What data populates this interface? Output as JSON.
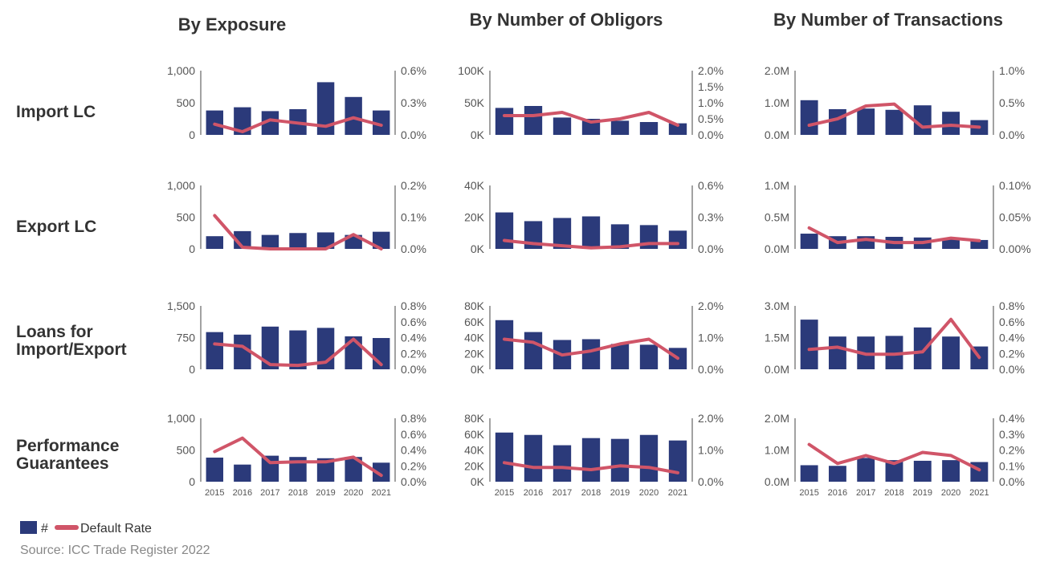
{
  "titles": {
    "col_exposure": "By Exposure",
    "col_obligors": "By Number of Obligors",
    "col_transactions": "By Number of Transactions"
  },
  "row_labels": {
    "import_lc": "Import LC",
    "export_lc": "Export LC",
    "loans_line1": "Loans for",
    "loans_line2": "Import/Export",
    "perf_line1": "Performance",
    "perf_line2": "Guarantees"
  },
  "legend": {
    "bar_label": "#",
    "line_label": "Default Rate"
  },
  "source": "Source: ICC Trade Register 2022",
  "colors": {
    "bar": "#2b3a7a",
    "line": "#d05568",
    "axis": "#444444",
    "text": "#333333",
    "tick": "#555555"
  },
  "chart_data": [
    {
      "type": "bar+line",
      "row": "Import LC",
      "column": "By Exposure",
      "categories": [
        "2015",
        "2016",
        "2017",
        "2018",
        "2019",
        "2020",
        "2021"
      ],
      "bar_values": [
        380,
        430,
        370,
        400,
        820,
        590,
        380
      ],
      "line_values": [
        0.1,
        0.03,
        0.14,
        0.11,
        0.08,
        0.16,
        0.09
      ],
      "y_left": {
        "max": 1000,
        "ticks": [
          0,
          500,
          1000
        ],
        "labels": [
          "0",
          "500",
          "1,000"
        ]
      },
      "y_right": {
        "max": 0.6,
        "ticks": [
          0,
          0.3,
          0.6
        ],
        "labels": [
          "0.0%",
          "0.3%",
          "0.6%"
        ]
      },
      "show_x_labels": false
    },
    {
      "type": "bar+line",
      "row": "Import LC",
      "column": "By Number of Obligors",
      "categories": [
        "2015",
        "2016",
        "2017",
        "2018",
        "2019",
        "2020",
        "2021"
      ],
      "bar_values": [
        42000,
        45000,
        27000,
        25000,
        22000,
        20000,
        18000
      ],
      "line_values": [
        0.6,
        0.6,
        0.7,
        0.4,
        0.5,
        0.7,
        0.3
      ],
      "y_left": {
        "max": 100000,
        "ticks": [
          0,
          50000,
          100000
        ],
        "labels": [
          "0K",
          "50K",
          "100K"
        ]
      },
      "y_right": {
        "max": 2.0,
        "ticks": [
          0,
          0.5,
          1.0,
          1.5,
          2.0
        ],
        "labels": [
          "0.0%",
          "0.5%",
          "1.0%",
          "1.5%",
          "2.0%"
        ]
      },
      "show_x_labels": false
    },
    {
      "type": "bar+line",
      "row": "Import LC",
      "column": "By Number of Transactions",
      "categories": [
        "2015",
        "2016",
        "2017",
        "2018",
        "2019",
        "2020",
        "2021"
      ],
      "bar_values": [
        1080000,
        800000,
        820000,
        780000,
        920000,
        720000,
        460000
      ],
      "line_values": [
        0.15,
        0.25,
        0.45,
        0.48,
        0.12,
        0.15,
        0.12
      ],
      "y_left": {
        "max": 2000000,
        "ticks": [
          0,
          1000000,
          2000000
        ],
        "labels": [
          "0.0M",
          "1.0M",
          "2.0M"
        ]
      },
      "y_right": {
        "max": 1.0,
        "ticks": [
          0,
          0.5,
          1.0
        ],
        "labels": [
          "0.0%",
          "0.5%",
          "1.0%"
        ]
      },
      "show_x_labels": false
    },
    {
      "type": "bar+line",
      "row": "Export LC",
      "column": "By Exposure",
      "categories": [
        "2015",
        "2016",
        "2017",
        "2018",
        "2019",
        "2020",
        "2021"
      ],
      "bar_values": [
        200,
        280,
        220,
        250,
        260,
        220,
        270
      ],
      "line_values": [
        0.105,
        0.005,
        0.0,
        0.0,
        0.0,
        0.045,
        0.0
      ],
      "y_left": {
        "max": 1000,
        "ticks": [
          0,
          500,
          1000
        ],
        "labels": [
          "0",
          "500",
          "1,000"
        ]
      },
      "y_right": {
        "max": 0.2,
        "ticks": [
          0,
          0.1,
          0.2
        ],
        "labels": [
          "0.0%",
          "0.1%",
          "0.2%"
        ]
      },
      "show_x_labels": false
    },
    {
      "type": "bar+line",
      "row": "Export LC",
      "column": "By Number of Obligors",
      "categories": [
        "2015",
        "2016",
        "2017",
        "2018",
        "2019",
        "2020",
        "2021"
      ],
      "bar_values": [
        23000,
        17500,
        19500,
        20500,
        15500,
        15000,
        11500
      ],
      "line_values": [
        0.08,
        0.05,
        0.03,
        0.01,
        0.02,
        0.05,
        0.05
      ],
      "y_left": {
        "max": 40000,
        "ticks": [
          0,
          20000,
          40000
        ],
        "labels": [
          "0K",
          "20K",
          "40K"
        ]
      },
      "y_right": {
        "max": 0.6,
        "ticks": [
          0,
          0.3,
          0.6
        ],
        "labels": [
          "0.0%",
          "0.3%",
          "0.6%"
        ]
      },
      "show_x_labels": false
    },
    {
      "type": "bar+line",
      "row": "Export LC",
      "column": "By Number of Transactions",
      "categories": [
        "2015",
        "2016",
        "2017",
        "2018",
        "2019",
        "2020",
        "2021"
      ],
      "bar_values": [
        240000,
        200000,
        200000,
        190000,
        180000,
        160000,
        140000
      ],
      "line_values": [
        0.033,
        0.01,
        0.015,
        0.01,
        0.01,
        0.017,
        0.013
      ],
      "y_left": {
        "max": 1000000,
        "ticks": [
          0,
          500000,
          1000000
        ],
        "labels": [
          "0.0M",
          "0.5M",
          "1.0M"
        ]
      },
      "y_right": {
        "max": 0.1,
        "ticks": [
          0,
          0.05,
          0.1
        ],
        "labels": [
          "0.00%",
          "0.05%",
          "0.10%"
        ]
      },
      "show_x_labels": false
    },
    {
      "type": "bar+line",
      "row": "Loans for Import/Export",
      "column": "By Exposure",
      "categories": [
        "2015",
        "2016",
        "2017",
        "2018",
        "2019",
        "2020",
        "2021"
      ],
      "bar_values": [
        880,
        820,
        1010,
        920,
        980,
        780,
        740
      ],
      "line_values": [
        0.32,
        0.29,
        0.06,
        0.05,
        0.09,
        0.38,
        0.06
      ],
      "y_left": {
        "max": 1500,
        "ticks": [
          0,
          750,
          1500
        ],
        "labels": [
          "0",
          "750",
          "1,500"
        ]
      },
      "y_right": {
        "max": 0.8,
        "ticks": [
          0,
          0.2,
          0.4,
          0.6,
          0.8
        ],
        "labels": [
          "0.0%",
          "0.2%",
          "0.4%",
          "0.6%",
          "0.8%"
        ]
      },
      "show_x_labels": false
    },
    {
      "type": "bar+line",
      "row": "Loans for Import/Export",
      "column": "By Number of Obligors",
      "categories": [
        "2015",
        "2016",
        "2017",
        "2018",
        "2019",
        "2020",
        "2021"
      ],
      "bar_values": [
        62000,
        47000,
        37000,
        38000,
        32000,
        31000,
        27000
      ],
      "line_values": [
        0.95,
        0.85,
        0.45,
        0.58,
        0.8,
        0.95,
        0.35
      ],
      "y_left": {
        "max": 80000,
        "ticks": [
          0,
          20000,
          40000,
          60000,
          80000
        ],
        "labels": [
          "0K",
          "20K",
          "40K",
          "60K",
          "80K"
        ]
      },
      "y_right": {
        "max": 2.0,
        "ticks": [
          0,
          1.0,
          2.0
        ],
        "labels": [
          "0.0%",
          "1.0%",
          "2.0%"
        ]
      },
      "show_x_labels": false
    },
    {
      "type": "bar+line",
      "row": "Loans for Import/Export",
      "column": "By Number of Transactions",
      "categories": [
        "2015",
        "2016",
        "2017",
        "2018",
        "2019",
        "2020",
        "2021"
      ],
      "bar_values": [
        2350000,
        1550000,
        1550000,
        1580000,
        1980000,
        1550000,
        1080000
      ],
      "line_values": [
        0.25,
        0.28,
        0.19,
        0.19,
        0.22,
        0.63,
        0.15
      ],
      "y_left": {
        "max": 3000000,
        "ticks": [
          0,
          1500000,
          3000000
        ],
        "labels": [
          "0.0M",
          "1.5M",
          "3.0M"
        ]
      },
      "y_right": {
        "max": 0.8,
        "ticks": [
          0,
          0.2,
          0.4,
          0.6,
          0.8
        ],
        "labels": [
          "0.0%",
          "0.2%",
          "0.4%",
          "0.6%",
          "0.8%"
        ]
      },
      "show_x_labels": false
    },
    {
      "type": "bar+line",
      "row": "Performance Guarantees",
      "column": "By Exposure",
      "categories": [
        "2015",
        "2016",
        "2017",
        "2018",
        "2019",
        "2020",
        "2021"
      ],
      "bar_values": [
        380,
        270,
        410,
        390,
        370,
        390,
        300
      ],
      "line_values": [
        0.38,
        0.55,
        0.24,
        0.25,
        0.25,
        0.31,
        0.08
      ],
      "y_left": {
        "max": 1000,
        "ticks": [
          0,
          500,
          1000
        ],
        "labels": [
          "0",
          "500",
          "1,000"
        ]
      },
      "y_right": {
        "max": 0.8,
        "ticks": [
          0,
          0.2,
          0.4,
          0.6,
          0.8
        ],
        "labels": [
          "0.0%",
          "0.2%",
          "0.4%",
          "0.6%",
          "0.8%"
        ]
      },
      "show_x_labels": true
    },
    {
      "type": "bar+line",
      "row": "Performance Guarantees",
      "column": "By Number of Obligors",
      "categories": [
        "2015",
        "2016",
        "2017",
        "2018",
        "2019",
        "2020",
        "2021"
      ],
      "bar_values": [
        62000,
        59000,
        46000,
        55000,
        54000,
        59000,
        52000
      ],
      "line_values": [
        0.6,
        0.45,
        0.45,
        0.38,
        0.5,
        0.45,
        0.28
      ],
      "y_left": {
        "max": 80000,
        "ticks": [
          0,
          20000,
          40000,
          60000,
          80000
        ],
        "labels": [
          "0K",
          "20K",
          "40K",
          "60K",
          "80K"
        ]
      },
      "y_right": {
        "max": 2.0,
        "ticks": [
          0,
          1.0,
          2.0
        ],
        "labels": [
          "0.0%",
          "1.0%",
          "2.0%"
        ]
      },
      "show_x_labels": true
    },
    {
      "type": "bar+line",
      "row": "Performance Guarantees",
      "column": "By Number of Transactions",
      "categories": [
        "2015",
        "2016",
        "2017",
        "2018",
        "2019",
        "2020",
        "2021"
      ],
      "bar_values": [
        520000,
        500000,
        750000,
        680000,
        660000,
        680000,
        620000
      ],
      "line_values": [
        0.235,
        0.115,
        0.165,
        0.115,
        0.185,
        0.165,
        0.075
      ],
      "y_left": {
        "max": 2000000,
        "ticks": [
          0,
          1000000,
          2000000
        ],
        "labels": [
          "0.0M",
          "1.0M",
          "2.0M"
        ]
      },
      "y_right": {
        "max": 0.4,
        "ticks": [
          0,
          0.1,
          0.2,
          0.3,
          0.4
        ],
        "labels": [
          "0.0%",
          "0.1%",
          "0.2%",
          "0.3%",
          "0.4%"
        ]
      },
      "show_x_labels": true
    }
  ]
}
